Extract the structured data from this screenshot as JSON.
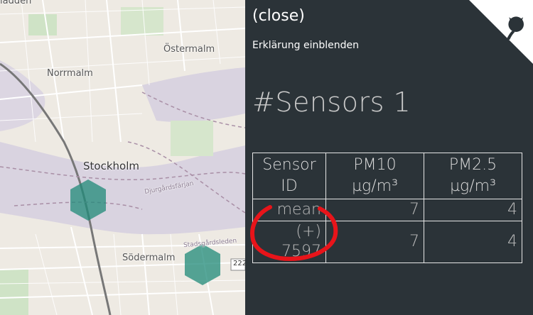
{
  "map": {
    "labels": {
      "top_edge": "ladden",
      "ostermalm": "Östermalm",
      "norrmalm": "Norrmalm",
      "stockholm": "Stockholm",
      "sodermalm": "Södermalm",
      "djurgardsfarjan": "Djurgårdsfärjan",
      "stadsgardsleden": "Stadsgårdsleden",
      "route": "222"
    },
    "colors": {
      "hexagon": "#1f8a78",
      "water": "#d9d3e0",
      "land": "#eeeae3",
      "park": "#cfe3c6"
    }
  },
  "sidebar": {
    "close": "(close)",
    "explain": "Erklärung einblenden",
    "sensor_count": "#Sensors 1",
    "table": {
      "headers": [
        {
          "line1": "Sensor",
          "line2": "ID"
        },
        {
          "line1": "PM10",
          "line2": "µg/m³"
        },
        {
          "line1": "PM2.5",
          "line2": "µg/m³"
        }
      ],
      "rows": [
        {
          "id": "mean",
          "pm10": "7",
          "pm25": "4"
        },
        {
          "id": "(+) 7597",
          "pm10": "7",
          "pm25": "4"
        }
      ]
    },
    "github_icon": "github-octocat-icon",
    "annotation_color": "#e8141a"
  }
}
